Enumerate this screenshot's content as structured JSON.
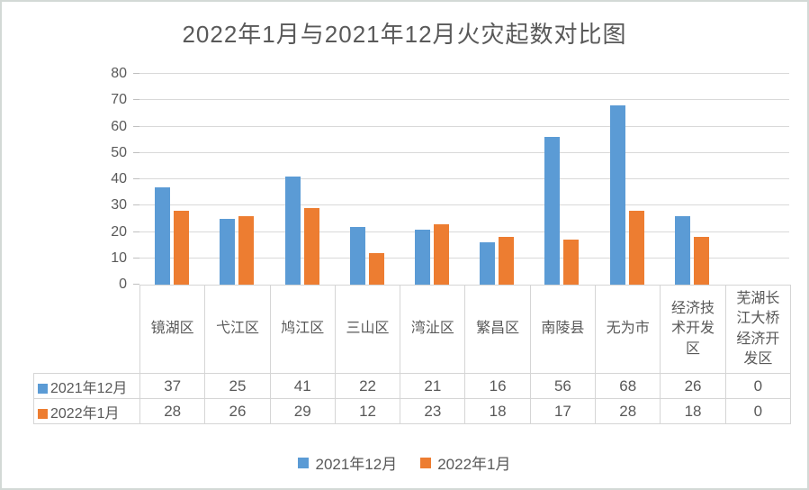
{
  "frame": {
    "background": "#ffffff",
    "border_color": "#d3d9d6"
  },
  "chart_data": {
    "type": "bar",
    "title": "2022年1月与2021年12月火灾起数对比图",
    "categories": [
      "镜湖区",
      "弋江区",
      "鸠江区",
      "三山区",
      "湾沚区",
      "繁昌区",
      "南陵县",
      "无为市",
      "经济技术开发区",
      "芜湖长江大桥经济开发区"
    ],
    "series": [
      {
        "name": "2021年12月",
        "color": "#5b9bd5",
        "values": [
          37,
          25,
          41,
          22,
          21,
          16,
          56,
          68,
          26,
          0
        ]
      },
      {
        "name": "2022年1月",
        "color": "#ed7d31",
        "values": [
          28,
          26,
          29,
          12,
          23,
          18,
          17,
          28,
          18,
          0
        ]
      }
    ],
    "ylim": [
      0,
      80
    ],
    "ytick_step": 10,
    "grid": "horizontal",
    "legend_position": "bottom",
    "data_table_visible": true
  },
  "style": {
    "title_text_color": "#595959",
    "axis_text_color": "#595959",
    "gridline_color": "#d9d9d9",
    "table_border_color": "#d5d5d5",
    "tick_color": "#bfbfbf"
  }
}
